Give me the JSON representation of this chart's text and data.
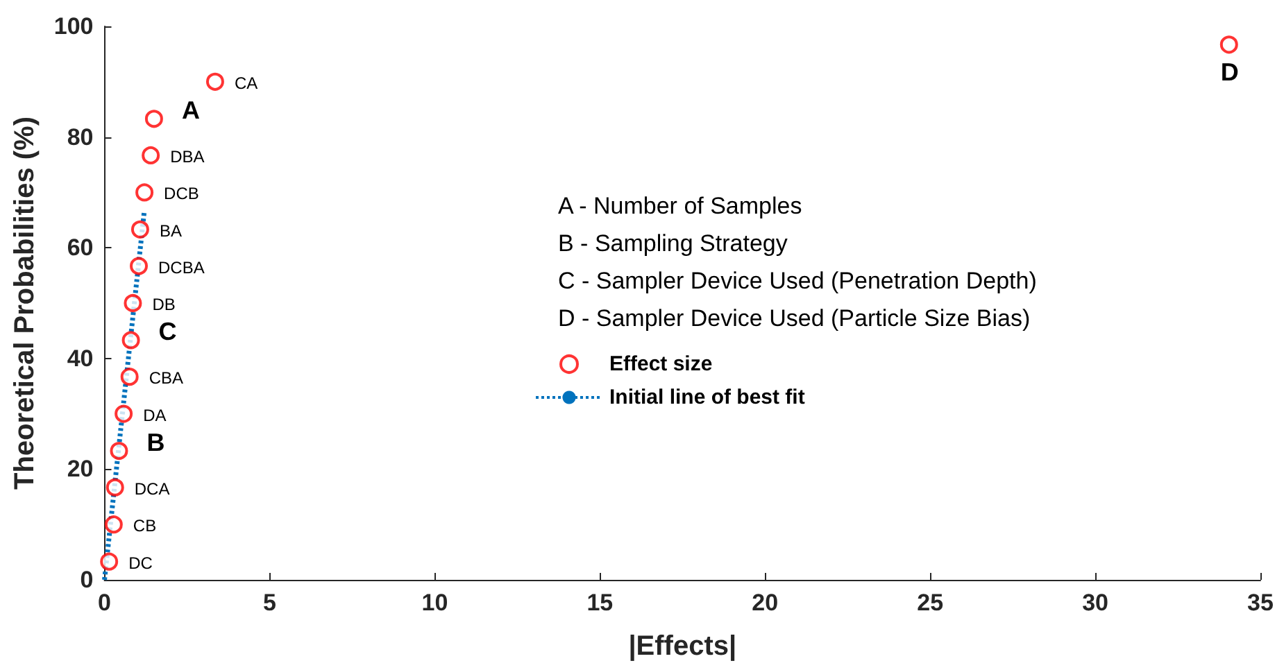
{
  "chart_data": {
    "type": "scatter",
    "xlabel": "|Effects|",
    "ylabel": "Theoretical Probabilities (%)",
    "xlim": [
      0,
      35
    ],
    "xticks": [
      0,
      5,
      10,
      15,
      20,
      25,
      30,
      35
    ],
    "ylim": [
      0,
      100
    ],
    "yticks": [
      0,
      20,
      40,
      60,
      80,
      100
    ],
    "grid": false,
    "legend": "right",
    "series": [
      {
        "name": "Effect size",
        "marker": "circle",
        "color": "#ff0000",
        "x": [
          0.14,
          0.28,
          0.32,
          0.44,
          0.58,
          0.76,
          0.8,
          0.86,
          1.04,
          1.08,
          1.21,
          1.4,
          1.5,
          3.35,
          34.05
        ],
        "values": [
          3.3,
          10,
          16.7,
          23.3,
          30,
          36.7,
          43.3,
          50,
          56.7,
          63.3,
          70,
          76.7,
          83.3,
          90,
          96.7
        ]
      },
      {
        "name": "Initial line of best fit",
        "type": "line",
        "color": "#0072bd",
        "line_style": "dotted",
        "marker": "none",
        "x": [
          0,
          1.2
        ],
        "values": [
          0,
          66.3
        ]
      }
    ],
    "annotations": [
      "A - Number of Samples",
      "B - Sampling Strategy",
      "C - Sampler Device Used (Penetration Depth)",
      "D - Sampler Device Used (Particle Size Bias)",
      {
        "text": "DC",
        "x": 0.14,
        "y": 3.3
      },
      {
        "text": "CB",
        "x": 0.28,
        "y": 10
      },
      {
        "text": "DCA",
        "x": 0.32,
        "y": 16.7
      },
      {
        "text": "B",
        "x": 0.44,
        "y": 23.3
      },
      {
        "text": "DA",
        "x": 0.58,
        "y": 30
      },
      {
        "text": "CBA",
        "x": 0.76,
        "y": 36.7
      },
      {
        "text": "C",
        "x": 0.8,
        "y": 43.3
      },
      {
        "text": "DB",
        "x": 0.86,
        "y": 50
      },
      {
        "text": "DCBA",
        "x": 1.04,
        "y": 56.7
      },
      {
        "text": "BA",
        "x": 1.08,
        "y": 63.3
      },
      {
        "text": "DCB",
        "x": 1.21,
        "y": 70
      },
      {
        "text": "DBA",
        "x": 1.4,
        "y": 76.7
      },
      {
        "text": "A",
        "x": 1.5,
        "y": 83.3
      },
      {
        "text": "CA",
        "x": 3.35,
        "y": 90
      },
      {
        "text": "D",
        "x": 34.05,
        "y": 96.7
      }
    ]
  }
}
